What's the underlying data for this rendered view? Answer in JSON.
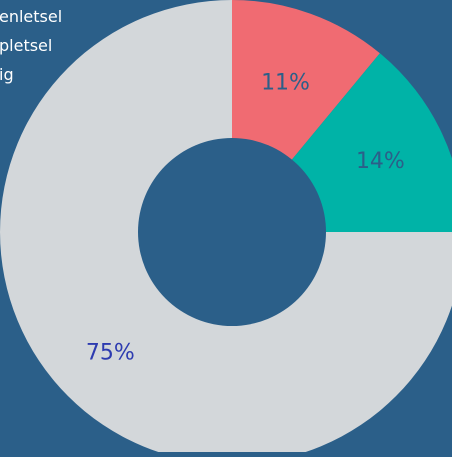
{
  "chart_data": {
    "type": "pie",
    "donut": true,
    "title": "",
    "background": "#2b5f89",
    "hole_color": "#2b5f89",
    "legend_position": "top-left",
    "legend": [
      {
        "label": "enletsel",
        "color": "#f06b72"
      },
      {
        "label": "pletsel",
        "color": "#00b3a7"
      },
      {
        "label": "ig",
        "color": "#d3d7da"
      }
    ],
    "slices": [
      {
        "label_text": "11%",
        "value": 11,
        "color": "#f06b72",
        "label_color": "#2b5f89"
      },
      {
        "label_text": "14%",
        "value": 14,
        "color": "#00b3a7",
        "label_color": "#2b5f89"
      },
      {
        "label_text": "75%",
        "value": 75,
        "color": "#d3d7da",
        "label_color": "#2d3bb0"
      }
    ]
  }
}
